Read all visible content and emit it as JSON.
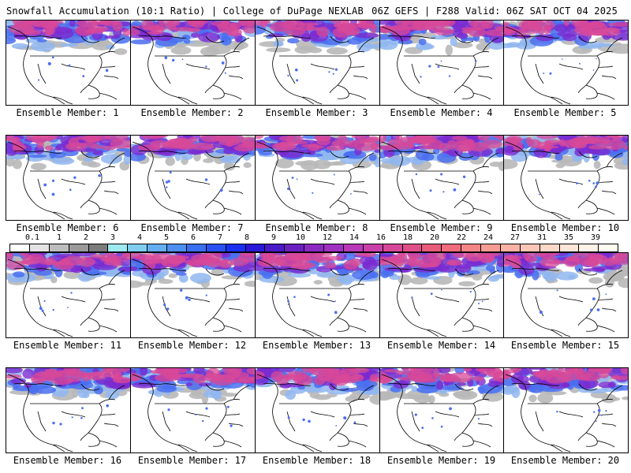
{
  "header": {
    "title_left": "Snowfall Accumulation (10:1 Ratio) | College of DuPage NEXLAB",
    "title_right": "06Z GEFS | F288 Valid: 06Z SAT OCT 04 2025"
  },
  "member_label_prefix": "Ensemble Member: ",
  "members": [
    {
      "id": 1,
      "label": "Ensemble Member: 1"
    },
    {
      "id": 2,
      "label": "Ensemble Member: 2"
    },
    {
      "id": 3,
      "label": "Ensemble Member: 3"
    },
    {
      "id": 4,
      "label": "Ensemble Member: 4"
    },
    {
      "id": 5,
      "label": "Ensemble Member: 5"
    },
    {
      "id": 6,
      "label": "Ensemble Member: 6"
    },
    {
      "id": 7,
      "label": "Ensemble Member: 7"
    },
    {
      "id": 8,
      "label": "Ensemble Member: 8"
    },
    {
      "id": 9,
      "label": "Ensemble Member: 9"
    },
    {
      "id": 10,
      "label": "Ensemble Member: 10"
    },
    {
      "id": 11,
      "label": "Ensemble Member: 11"
    },
    {
      "id": 12,
      "label": "Ensemble Member: 12"
    },
    {
      "id": 13,
      "label": "Ensemble Member: 13"
    },
    {
      "id": 14,
      "label": "Ensemble Member: 14"
    },
    {
      "id": 15,
      "label": "Ensemble Member: 15"
    },
    {
      "id": 16,
      "label": "Ensemble Member: 16"
    },
    {
      "id": 17,
      "label": "Ensemble Member: 17"
    },
    {
      "id": 18,
      "label": "Ensemble Member: 18"
    },
    {
      "id": 19,
      "label": "Ensemble Member: 19"
    },
    {
      "id": 20,
      "label": "Ensemble Member: 20"
    }
  ],
  "colorbar": {
    "ticks": [
      "0.1",
      "1",
      "2",
      "3",
      "4",
      "5",
      "6",
      "7",
      "8",
      "9",
      "10",
      "12",
      "14",
      "16",
      "18",
      "20",
      "22",
      "24",
      "27",
      "31",
      "35",
      "39"
    ],
    "colors": [
      "#ffffff",
      "#e3e3e3",
      "#bdbdbd",
      "#9a9a9a",
      "#7b7b7b",
      "#9ee8f0",
      "#7fcdf0",
      "#63aef0",
      "#4d8ff0",
      "#3a6ef0",
      "#2a4ff0",
      "#1a2ff0",
      "#2a1ad8",
      "#4a1ac8",
      "#6a20c0",
      "#8a2ac0",
      "#a030c0",
      "#b838b8",
      "#c840a8",
      "#d84898",
      "#e05088",
      "#e85c7c",
      "#f06c7c",
      "#f48486",
      "#f79c94",
      "#f9b2a4",
      "#fbc6b6",
      "#fcd8c8",
      "#fde6d8",
      "#fff2e6",
      "#fffaf0"
    ]
  }
}
